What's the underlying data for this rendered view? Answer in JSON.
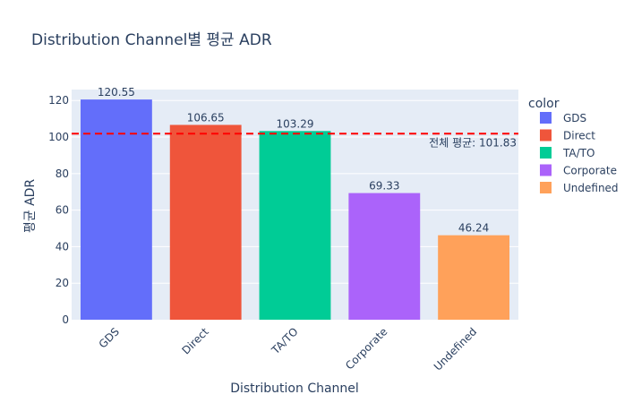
{
  "chart_data": {
    "type": "bar",
    "title": "Distribution Channel별 평균 ADR",
    "xlabel": "Distribution Channel",
    "ylabel": "평균 ADR",
    "categories": [
      "GDS",
      "Direct",
      "TA/TO",
      "Corporate",
      "Undefined"
    ],
    "values": [
      120.55,
      106.65,
      103.29,
      69.33,
      46.24
    ],
    "value_labels": [
      "120.55",
      "106.65",
      "103.29",
      "69.33",
      "46.24"
    ],
    "colors": [
      "#636efa",
      "#ef553b",
      "#00cc96",
      "#ab63fa",
      "#ffa15a"
    ],
    "ylim": [
      0,
      126
    ],
    "yticks": [
      0,
      20,
      40,
      60,
      80,
      100,
      120
    ],
    "grid": true,
    "legend": {
      "title": "color",
      "placement": "right",
      "entries": [
        "GDS",
        "Direct",
        "TA/TO",
        "Corporate",
        "Undefined"
      ]
    },
    "reference_line": {
      "value": 101.83,
      "label": "전체 평균: 101.83",
      "color": "#ff0000",
      "style": "dashed"
    }
  }
}
